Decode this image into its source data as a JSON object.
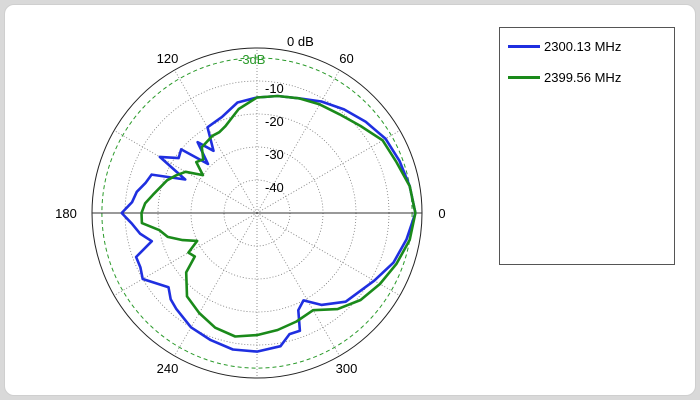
{
  "chart_data": {
    "type": "polar-line",
    "r_unit_label": "0 dB",
    "r_ticks": [
      {
        "value": -10,
        "label": "-10"
      },
      {
        "value": -20,
        "label": "-20"
      },
      {
        "value": -30,
        "label": "-30"
      },
      {
        "value": -40,
        "label": "-40"
      }
    ],
    "r_range_db": [
      -50,
      0
    ],
    "reference": {
      "value": -3,
      "label": "-3dB",
      "color": "#2a9a2a"
    },
    "angle_ticks": [
      {
        "deg": 0,
        "label": "0"
      },
      {
        "deg": 60,
        "label": "60"
      },
      {
        "deg": 120,
        "label": "120"
      },
      {
        "deg": 180,
        "label": "180"
      },
      {
        "deg": 240,
        "label": "240"
      },
      {
        "deg": 300,
        "label": "300"
      }
    ],
    "legend_position": "right",
    "series": [
      {
        "name": "2300.13 MHz",
        "color": "#1f2fe0",
        "points": [
          [
            0,
            -2
          ],
          [
            10,
            -3
          ],
          [
            20,
            -4
          ],
          [
            30,
            -5
          ],
          [
            40,
            -7
          ],
          [
            50,
            -9
          ],
          [
            60,
            -11
          ],
          [
            70,
            -13
          ],
          [
            80,
            -14
          ],
          [
            90,
            -15
          ],
          [
            100,
            -16
          ],
          [
            110,
            -19
          ],
          [
            120,
            -20
          ],
          [
            125,
            -27
          ],
          [
            130,
            -22
          ],
          [
            135,
            -29
          ],
          [
            140,
            -20
          ],
          [
            145,
            -21
          ],
          [
            150,
            -16
          ],
          [
            155,
            -26
          ],
          [
            160,
            -16
          ],
          [
            165,
            -15
          ],
          [
            170,
            -13
          ],
          [
            175,
            -12
          ],
          [
            180,
            -9
          ],
          [
            185,
            -12
          ],
          [
            190,
            -14
          ],
          [
            195,
            -17
          ],
          [
            200,
            -11
          ],
          [
            205,
            -11
          ],
          [
            210,
            -10
          ],
          [
            220,
            -15
          ],
          [
            225,
            -13
          ],
          [
            230,
            -12
          ],
          [
            240,
            -10
          ],
          [
            250,
            -9
          ],
          [
            260,
            -8
          ],
          [
            270,
            -8
          ],
          [
            280,
            -9
          ],
          [
            285,
            -12
          ],
          [
            290,
            -12
          ],
          [
            293,
            -18
          ],
          [
            298,
            -20
          ],
          [
            305,
            -16
          ],
          [
            315,
            -12
          ],
          [
            330,
            -9
          ],
          [
            340,
            -6
          ],
          [
            350,
            -4
          ],
          [
            360,
            -2
          ]
        ]
      },
      {
        "name": "2399.56 MHz",
        "color": "#1a8a1a",
        "points": [
          [
            0,
            -2
          ],
          [
            10,
            -3
          ],
          [
            20,
            -5
          ],
          [
            30,
            -6
          ],
          [
            40,
            -9
          ],
          [
            50,
            -11
          ],
          [
            60,
            -12
          ],
          [
            70,
            -13
          ],
          [
            80,
            -14
          ],
          [
            90,
            -15
          ],
          [
            100,
            -18
          ],
          [
            110,
            -22
          ],
          [
            115,
            -23
          ],
          [
            120,
            -23
          ],
          [
            130,
            -24
          ],
          [
            135,
            -27
          ],
          [
            140,
            -26
          ],
          [
            145,
            -30
          ],
          [
            150,
            -25
          ],
          [
            155,
            -23
          ],
          [
            160,
            -21
          ],
          [
            170,
            -18
          ],
          [
            175,
            -16
          ],
          [
            180,
            -15
          ],
          [
            185,
            -15
          ],
          [
            190,
            -20
          ],
          [
            195,
            -22
          ],
          [
            200,
            -26
          ],
          [
            205,
            -30
          ],
          [
            210,
            -26
          ],
          [
            215,
            -27
          ],
          [
            220,
            -22
          ],
          [
            230,
            -17
          ],
          [
            240,
            -15
          ],
          [
            250,
            -13
          ],
          [
            260,
            -12
          ],
          [
            270,
            -13
          ],
          [
            280,
            -14
          ],
          [
            290,
            -15
          ],
          [
            300,
            -16
          ],
          [
            310,
            -12
          ],
          [
            320,
            -9
          ],
          [
            330,
            -7
          ],
          [
            340,
            -5
          ],
          [
            350,
            -3
          ],
          [
            360,
            -2
          ]
        ]
      }
    ]
  }
}
